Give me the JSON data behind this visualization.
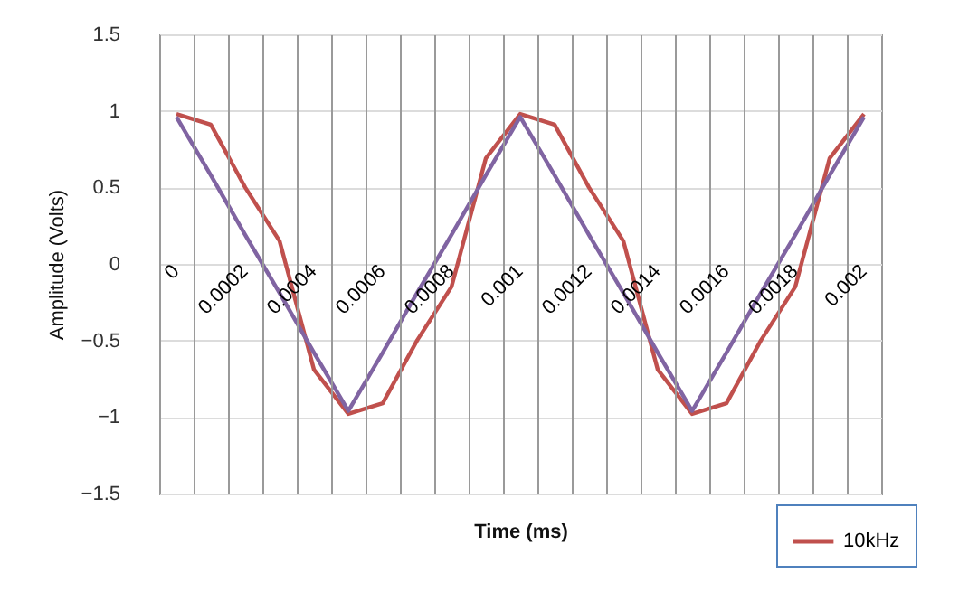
{
  "chart_data": {
    "type": "line",
    "xlabel": "Time (ms)",
    "ylabel": "Amplitude (Volts)",
    "categories": [
      "0",
      null,
      "0.0002",
      null,
      "0.0004",
      null,
      "0.0006",
      null,
      "0.0008",
      null,
      "0.001",
      null,
      "0.0012",
      null,
      "0.0014",
      null,
      "0.0016",
      null,
      "0.0018",
      null,
      "0.002"
    ],
    "series": [
      {
        "name": "10kHz",
        "color": "#c0504d",
        "values": [
          0.98,
          0.91,
          0.5,
          0.15,
          -0.69,
          -0.98,
          -0.91,
          -0.5,
          -0.15,
          0.69,
          0.98,
          0.91,
          0.5,
          0.15,
          -0.69,
          -0.98,
          -0.91,
          -0.5,
          -0.15,
          0.69,
          0.98
        ]
      },
      {
        "color": "#8064a2",
        "values": [
          0.96,
          0.58,
          0.19,
          -0.19,
          -0.58,
          -0.96,
          -0.58,
          -0.19,
          0.19,
          0.58,
          0.96,
          0.58,
          0.19,
          -0.19,
          -0.58,
          -0.96,
          -0.58,
          -0.19,
          0.19,
          0.58,
          0.96
        ]
      }
    ],
    "ylim": [
      -1.5,
      1.5
    ],
    "yticks": [
      -1.5,
      -1,
      -0.5,
      0,
      0.5,
      1,
      1.5
    ],
    "grid": true,
    "legend": "bottom right"
  }
}
